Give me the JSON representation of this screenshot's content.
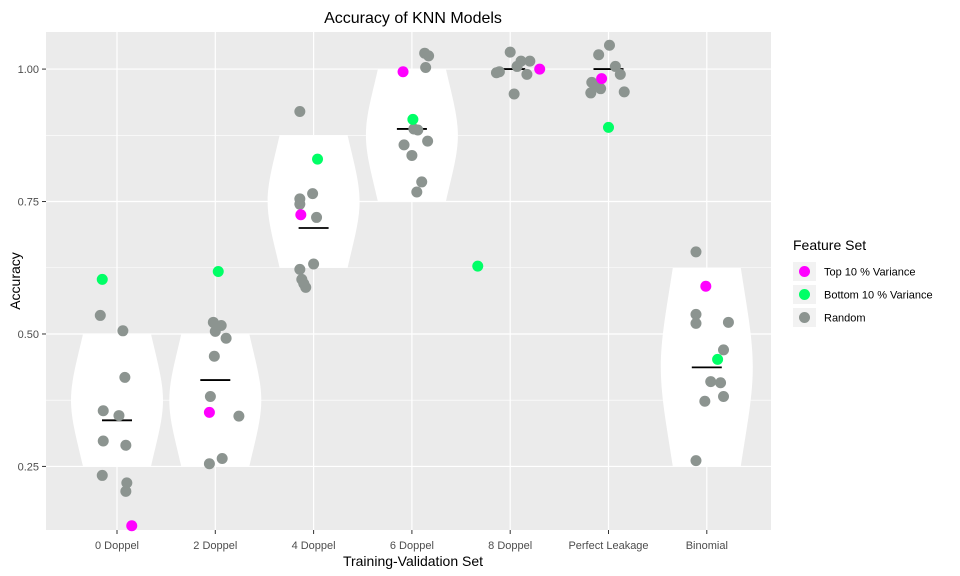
{
  "chart_data": {
    "type": "scatter",
    "title": "Accuracy of KNN Models",
    "xlabel": "Training-Validation Set",
    "ylabel": "Accuracy",
    "categories": [
      "0 Doppel",
      "2 Doppel",
      "4 Doppel",
      "6 Doppel",
      "8 Doppel",
      "Perfect Leakage",
      "Binomial"
    ],
    "ylim": [
      0.13,
      1.07
    ],
    "yticks": [
      0.25,
      0.5,
      0.75,
      1.0
    ],
    "ytick_labels": [
      "0.25",
      "0.50",
      "0.75",
      "1.00"
    ],
    "grid": true,
    "legend": {
      "title": "Feature Set",
      "position": "right",
      "entries": [
        "Top 10 % Variance",
        "Bottom 10 % Variance",
        "Random"
      ]
    },
    "colors": {
      "Top 10 % Variance": "#ff00ff",
      "Bottom 10 % Variance": "#00ff66",
      "Random": "#8c9490",
      "panel": "#ebebeb",
      "violin": "#ffffff",
      "median": "#000000"
    },
    "violins": [
      {
        "category": "0 Doppel",
        "range": [
          0.25,
          0.5
        ],
        "median": 0.337
      },
      {
        "category": "2 Doppel",
        "range": [
          0.25,
          0.5
        ],
        "median": 0.413
      },
      {
        "category": "4 Doppel",
        "range": [
          0.625,
          0.875
        ],
        "median": 0.7
      },
      {
        "category": "6 Doppel",
        "range": [
          0.75,
          1.0
        ],
        "median": 0.887
      },
      {
        "category": "8 Doppel",
        "range": [
          1.0,
          1.0
        ],
        "median": 1.0
      },
      {
        "category": "Perfect Leakage",
        "range": [
          1.0,
          1.0
        ],
        "median": 1.0
      },
      {
        "category": "Binomial",
        "range": [
          0.25,
          0.625
        ],
        "median": 0.437
      }
    ],
    "series": [
      {
        "name": "Top 10 % Variance",
        "points": [
          {
            "category": "0 Doppel",
            "jitter": 0.15,
            "y": 0.138
          },
          {
            "category": "2 Doppel",
            "jitter": -0.06,
            "y": 0.352
          },
          {
            "category": "4 Doppel",
            "jitter": -0.13,
            "y": 0.725
          },
          {
            "category": "6 Doppel",
            "jitter": -0.09,
            "y": 0.995
          },
          {
            "category": "8 Doppel",
            "jitter": 0.3,
            "y": 1.0
          },
          {
            "category": "Perfect Leakage",
            "jitter": -0.07,
            "y": 0.982
          },
          {
            "category": "Binomial",
            "jitter": -0.01,
            "y": 0.59
          }
        ]
      },
      {
        "name": "Bottom 10 % Variance",
        "points": [
          {
            "category": "0 Doppel",
            "jitter": -0.15,
            "y": 0.603
          },
          {
            "category": "2 Doppel",
            "jitter": 0.03,
            "y": 0.618
          },
          {
            "category": "4 Doppel",
            "jitter": 0.04,
            "y": 0.83
          },
          {
            "category": "6 Doppel",
            "jitter": 0.01,
            "y": 0.905
          },
          {
            "category": "8 Doppel",
            "jitter": -0.33,
            "y": 0.628
          },
          {
            "category": "Perfect Leakage",
            "jitter": 0.0,
            "y": 0.89
          },
          {
            "category": "Binomial",
            "jitter": 0.11,
            "y": 0.452
          }
        ]
      },
      {
        "name": "Random",
        "points": [
          {
            "category": "0 Doppel",
            "jitter": -0.17,
            "y": 0.535
          },
          {
            "category": "0 Doppel",
            "jitter": 0.06,
            "y": 0.506
          },
          {
            "category": "0 Doppel",
            "jitter": 0.08,
            "y": 0.418
          },
          {
            "category": "0 Doppel",
            "jitter": -0.14,
            "y": 0.355
          },
          {
            "category": "0 Doppel",
            "jitter": 0.02,
            "y": 0.346
          },
          {
            "category": "0 Doppel",
            "jitter": -0.14,
            "y": 0.298
          },
          {
            "category": "0 Doppel",
            "jitter": 0.09,
            "y": 0.29
          },
          {
            "category": "0 Doppel",
            "jitter": -0.15,
            "y": 0.233
          },
          {
            "category": "0 Doppel",
            "jitter": 0.1,
            "y": 0.219
          },
          {
            "category": "0 Doppel",
            "jitter": 0.09,
            "y": 0.203
          },
          {
            "category": "2 Doppel",
            "jitter": -0.02,
            "y": 0.522
          },
          {
            "category": "2 Doppel",
            "jitter": 0.0,
            "y": 0.505
          },
          {
            "category": "2 Doppel",
            "jitter": 0.06,
            "y": 0.516
          },
          {
            "category": "2 Doppel",
            "jitter": 0.11,
            "y": 0.492
          },
          {
            "category": "2 Doppel",
            "jitter": -0.01,
            "y": 0.458
          },
          {
            "category": "2 Doppel",
            "jitter": -0.05,
            "y": 0.382
          },
          {
            "category": "2 Doppel",
            "jitter": 0.24,
            "y": 0.345
          },
          {
            "category": "2 Doppel",
            "jitter": 0.07,
            "y": 0.265
          },
          {
            "category": "2 Doppel",
            "jitter": -0.06,
            "y": 0.255
          },
          {
            "category": "4 Doppel",
            "jitter": -0.14,
            "y": 0.92
          },
          {
            "category": "4 Doppel",
            "jitter": -0.14,
            "y": 0.755
          },
          {
            "category": "4 Doppel",
            "jitter": -0.01,
            "y": 0.765
          },
          {
            "category": "4 Doppel",
            "jitter": -0.14,
            "y": 0.745
          },
          {
            "category": "4 Doppel",
            "jitter": 0.03,
            "y": 0.72
          },
          {
            "category": "4 Doppel",
            "jitter": 0.0,
            "y": 0.632
          },
          {
            "category": "4 Doppel",
            "jitter": -0.14,
            "y": 0.622
          },
          {
            "category": "4 Doppel",
            "jitter": -0.12,
            "y": 0.603
          },
          {
            "category": "4 Doppel",
            "jitter": -0.1,
            "y": 0.595
          },
          {
            "category": "4 Doppel",
            "jitter": -0.08,
            "y": 0.588
          },
          {
            "category": "6 Doppel",
            "jitter": 0.13,
            "y": 1.03
          },
          {
            "category": "6 Doppel",
            "jitter": 0.17,
            "y": 1.025
          },
          {
            "category": "6 Doppel",
            "jitter": 0.14,
            "y": 1.003
          },
          {
            "category": "6 Doppel",
            "jitter": 0.02,
            "y": 0.887
          },
          {
            "category": "6 Doppel",
            "jitter": 0.06,
            "y": 0.885
          },
          {
            "category": "6 Doppel",
            "jitter": 0.16,
            "y": 0.864
          },
          {
            "category": "6 Doppel",
            "jitter": -0.08,
            "y": 0.857
          },
          {
            "category": "6 Doppel",
            "jitter": 0.0,
            "y": 0.837
          },
          {
            "category": "6 Doppel",
            "jitter": 0.1,
            "y": 0.787
          },
          {
            "category": "6 Doppel",
            "jitter": 0.05,
            "y": 0.768
          },
          {
            "category": "8 Doppel",
            "jitter": 0.0,
            "y": 1.032
          },
          {
            "category": "8 Doppel",
            "jitter": 0.11,
            "y": 1.015
          },
          {
            "category": "8 Doppel",
            "jitter": 0.2,
            "y": 1.015
          },
          {
            "category": "8 Doppel",
            "jitter": 0.07,
            "y": 1.005
          },
          {
            "category": "8 Doppel",
            "jitter": -0.14,
            "y": 0.993
          },
          {
            "category": "8 Doppel",
            "jitter": -0.11,
            "y": 0.995
          },
          {
            "category": "8 Doppel",
            "jitter": 0.17,
            "y": 0.99
          },
          {
            "category": "8 Doppel",
            "jitter": 0.04,
            "y": 0.953
          },
          {
            "category": "Perfect Leakage",
            "jitter": 0.01,
            "y": 1.045
          },
          {
            "category": "Perfect Leakage",
            "jitter": -0.1,
            "y": 1.027
          },
          {
            "category": "Perfect Leakage",
            "jitter": 0.07,
            "y": 1.005
          },
          {
            "category": "Perfect Leakage",
            "jitter": 0.12,
            "y": 0.99
          },
          {
            "category": "Perfect Leakage",
            "jitter": -0.17,
            "y": 0.975
          },
          {
            "category": "Perfect Leakage",
            "jitter": -0.12,
            "y": 0.97
          },
          {
            "category": "Perfect Leakage",
            "jitter": -0.08,
            "y": 0.963
          },
          {
            "category": "Perfect Leakage",
            "jitter": -0.18,
            "y": 0.955
          },
          {
            "category": "Perfect Leakage",
            "jitter": 0.16,
            "y": 0.957
          },
          {
            "category": "Binomial",
            "jitter": -0.11,
            "y": 0.655
          },
          {
            "category": "Binomial",
            "jitter": -0.11,
            "y": 0.537
          },
          {
            "category": "Binomial",
            "jitter": -0.11,
            "y": 0.52
          },
          {
            "category": "Binomial",
            "jitter": 0.22,
            "y": 0.522
          },
          {
            "category": "Binomial",
            "jitter": 0.17,
            "y": 0.47
          },
          {
            "category": "Binomial",
            "jitter": 0.04,
            "y": 0.41
          },
          {
            "category": "Binomial",
            "jitter": 0.14,
            "y": 0.408
          },
          {
            "category": "Binomial",
            "jitter": 0.17,
            "y": 0.382
          },
          {
            "category": "Binomial",
            "jitter": -0.02,
            "y": 0.373
          },
          {
            "category": "Binomial",
            "jitter": -0.11,
            "y": 0.261
          }
        ]
      }
    ]
  }
}
